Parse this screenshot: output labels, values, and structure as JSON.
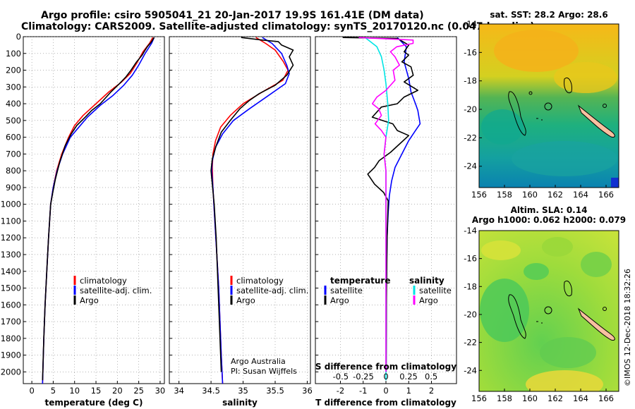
{
  "title": {
    "line1": "Argo profile: csiro 5905041_21 20-Jan-2017 19.9S 161.41E (DM data)",
    "line2": "Climatology: CARS2009. Satellite-adjusted climatology: synTS_20170120.nc (0.047d earlier)"
  },
  "colors": {
    "climatology": "#ff0000",
    "satellite": "#0000ff",
    "argo": "#000000",
    "sal_satellite": "#00e5e5",
    "sal_argo": "#ff00ff"
  },
  "depth_axis": {
    "ticks": [
      "0",
      "100",
      "200",
      "300",
      "400",
      "500",
      "600",
      "700",
      "800",
      "900",
      "1000",
      "1100",
      "1200",
      "1300",
      "1400",
      "1500",
      "1600",
      "1700",
      "1800",
      "1900",
      "2000"
    ]
  },
  "panel_temp": {
    "xlabel": "temperature (deg C)",
    "ticks": [
      "0",
      "5",
      "10",
      "15",
      "20",
      "25",
      "30"
    ],
    "legend": [
      "climatology",
      "satellite-adj. clim.",
      "Argo"
    ]
  },
  "panel_sal": {
    "xlabel": "salinity",
    "ticks": [
      "34",
      "34.5",
      "35",
      "35.5",
      "36"
    ],
    "legend": [
      "climatology",
      "satellite-adj. clim.",
      "Argo"
    ],
    "credit1": "Argo Australia",
    "credit2": "PI: Susan Wijffels"
  },
  "panel_diff": {
    "xlabel": "T difference from climatology",
    "ticks": [
      "-2",
      "-1",
      "0",
      "1",
      "2"
    ],
    "s_label": "S difference from climatology",
    "s_ticks": [
      "-0.5",
      "-0.25",
      "0",
      "0.25",
      "0.5"
    ],
    "legend_temp_head": "temperature",
    "legend_sal_head": "salinity",
    "legend_temp": [
      "satellite",
      "Argo"
    ],
    "legend_sal": [
      "satellite",
      "Argo"
    ]
  },
  "map1": {
    "title": "sat. SST: 28.2 Argo: 28.6",
    "yticks": [
      "-14",
      "-16",
      "-18",
      "-20",
      "-22",
      "-24"
    ],
    "xticks": [
      "156",
      "158",
      "160",
      "162",
      "164",
      "166"
    ]
  },
  "map2": {
    "title1": "Altim. SLA: 0.14",
    "title2": "Argo h1000: 0.062 h2000: 0.079",
    "yticks": [
      "-14",
      "-16",
      "-18",
      "-20",
      "-22",
      "-24"
    ],
    "xticks": [
      "156",
      "158",
      "160",
      "162",
      "164",
      "166"
    ]
  },
  "footer": "©IMOS 12-Dec-2018 18:32:26",
  "chart_data": [
    {
      "type": "line",
      "title": "temperature profile",
      "xlabel": "temperature (deg C)",
      "ylabel": "depth",
      "xlim": [
        -2,
        31
      ],
      "ylim": [
        2070,
        0
      ],
      "series": [
        {
          "name": "climatology",
          "points": [
            [
              28.3,
              5
            ],
            [
              27.5,
              40
            ],
            [
              26,
              90
            ],
            [
              24.5,
              160
            ],
            [
              23,
              220
            ],
            [
              21,
              270
            ],
            [
              18,
              330
            ],
            [
              15,
              400
            ],
            [
              12,
              470
            ],
            [
              10,
              530
            ],
            [
              8.6,
              600
            ],
            [
              7,
              700
            ],
            [
              5.8,
              800
            ],
            [
              5,
              900
            ],
            [
              4.4,
              1000
            ],
            [
              3.9,
              1200
            ],
            [
              3.5,
              1400
            ],
            [
              3.1,
              1600
            ],
            [
              2.8,
              1800
            ],
            [
              2.5,
              2070
            ]
          ]
        },
        {
          "name": "satellite-adj. clim.",
          "points": [
            [
              28.6,
              5
            ],
            [
              28,
              40
            ],
            [
              26.5,
              100
            ],
            [
              25,
              170
            ],
            [
              23.5,
              230
            ],
            [
              21.5,
              290
            ],
            [
              19,
              350
            ],
            [
              16,
              410
            ],
            [
              13,
              480
            ],
            [
              11,
              540
            ],
            [
              9,
              600
            ],
            [
              7.2,
              700
            ],
            [
              5.9,
              800
            ],
            [
              5,
              900
            ],
            [
              4.4,
              1000
            ],
            [
              3.9,
              1200
            ],
            [
              3.5,
              1400
            ],
            [
              3.1,
              1600
            ],
            [
              2.8,
              1800
            ],
            [
              2.5,
              2070
            ]
          ]
        },
        {
          "name": "Argo",
          "points": [
            [
              28.6,
              5
            ],
            [
              28,
              30
            ],
            [
              27,
              60
            ],
            [
              26.5,
              80
            ],
            [
              25.8,
              110
            ],
            [
              24.5,
              150
            ],
            [
              23.2,
              200
            ],
            [
              22,
              240
            ],
            [
              20.5,
              280
            ],
            [
              18.5,
              330
            ],
            [
              16,
              400
            ],
            [
              14,
              440
            ],
            [
              12.5,
              480
            ],
            [
              10.5,
              530
            ],
            [
              9.2,
              580
            ],
            [
              7.8,
              650
            ],
            [
              6.5,
              750
            ],
            [
              5.5,
              850
            ],
            [
              4.9,
              930
            ],
            [
              4.4,
              1000
            ],
            [
              3.9,
              1200
            ],
            [
              3.5,
              1400
            ],
            [
              3.1,
              1600
            ],
            [
              2.8,
              1800
            ],
            [
              2.5,
              2050
            ]
          ]
        }
      ]
    },
    {
      "type": "line",
      "title": "salinity profile",
      "xlabel": "salinity",
      "ylabel": "depth",
      "xlim": [
        33.85,
        36.05
      ],
      "ylim": [
        2070,
        0
      ],
      "series": [
        {
          "name": "climatology",
          "points": [
            [
              35.2,
              5
            ],
            [
              35.35,
              40
            ],
            [
              35.5,
              80
            ],
            [
              35.63,
              150
            ],
            [
              35.7,
              200
            ],
            [
              35.62,
              260
            ],
            [
              35.3,
              330
            ],
            [
              35,
              400
            ],
            [
              34.8,
              470
            ],
            [
              34.65,
              540
            ],
            [
              34.57,
              620
            ],
            [
              34.53,
              700
            ],
            [
              34.52,
              780
            ],
            [
              34.53,
              900
            ],
            [
              34.56,
              1100
            ],
            [
              34.59,
              1300
            ],
            [
              34.62,
              1500
            ],
            [
              34.64,
              1700
            ],
            [
              34.66,
              1900
            ],
            [
              34.68,
              2070
            ]
          ]
        },
        {
          "name": "satellite-adj. clim.",
          "points": [
            [
              35.3,
              5
            ],
            [
              35.45,
              40
            ],
            [
              35.6,
              100
            ],
            [
              35.68,
              170
            ],
            [
              35.72,
              220
            ],
            [
              35.66,
              280
            ],
            [
              35.4,
              350
            ],
            [
              35.1,
              430
            ],
            [
              34.85,
              500
            ],
            [
              34.68,
              580
            ],
            [
              34.57,
              660
            ],
            [
              34.52,
              740
            ],
            [
              34.51,
              800
            ],
            [
              34.53,
              900
            ],
            [
              34.56,
              1100
            ],
            [
              34.59,
              1300
            ],
            [
              34.62,
              1500
            ],
            [
              34.64,
              1700
            ],
            [
              34.66,
              1900
            ],
            [
              34.68,
              2070
            ]
          ]
        },
        {
          "name": "Argo",
          "points": [
            [
              34.97,
              5
            ],
            [
              35.3,
              20
            ],
            [
              35.55,
              30
            ],
            [
              35.6,
              50
            ],
            [
              35.78,
              80
            ],
            [
              35.72,
              120
            ],
            [
              35.78,
              170
            ],
            [
              35.68,
              230
            ],
            [
              35.5,
              290
            ],
            [
              35.25,
              340
            ],
            [
              35.1,
              380
            ],
            [
              34.95,
              430
            ],
            [
              34.8,
              500
            ],
            [
              34.66,
              570
            ],
            [
              34.58,
              650
            ],
            [
              34.52,
              730
            ],
            [
              34.5,
              800
            ],
            [
              34.52,
              880
            ],
            [
              34.55,
              1000
            ],
            [
              34.58,
              1200
            ],
            [
              34.6,
              1400
            ],
            [
              34.62,
              1600
            ],
            [
              34.64,
              1800
            ],
            [
              34.66,
              2000
            ]
          ]
        }
      ]
    },
    {
      "type": "line",
      "title": "difference from climatology",
      "xlabel": "T difference from climatology",
      "ylabel": "depth",
      "xlim": [
        -3.1,
        3.1
      ],
      "ylim": [
        2070,
        0
      ],
      "secondary_x": {
        "label": "S difference from climatology",
        "range": [
          -0.78,
          0.78
        ]
      },
      "series": [
        {
          "name": "temperature satellite",
          "axis": "T",
          "points": [
            [
              0.5,
              5
            ],
            [
              0.9,
              60
            ],
            [
              0.8,
              150
            ],
            [
              1,
              250
            ],
            [
              1.1,
              330
            ],
            [
              1.3,
              400
            ],
            [
              1.4,
              440
            ],
            [
              1.5,
              520
            ],
            [
              1.3,
              560
            ],
            [
              1,
              620
            ],
            [
              0.7,
              700
            ],
            [
              0.4,
              780
            ],
            [
              0.25,
              860
            ],
            [
              0.15,
              950
            ],
            [
              0.1,
              1050
            ],
            [
              0.05,
              1200
            ],
            [
              0.02,
              1500
            ],
            [
              0.01,
              2000
            ]
          ]
        },
        {
          "name": "temperature Argo",
          "axis": "T",
          "points": [
            [
              -1.9,
              5
            ],
            [
              0.5,
              10
            ],
            [
              1,
              50
            ],
            [
              0.8,
              90
            ],
            [
              1,
              110
            ],
            [
              0.7,
              150
            ],
            [
              1.1,
              180
            ],
            [
              1.2,
              230
            ],
            [
              0.8,
              270
            ],
            [
              1.4,
              320
            ],
            [
              0.8,
              360
            ],
            [
              0.5,
              400
            ],
            [
              -0.2,
              420
            ],
            [
              -0.6,
              480
            ],
            [
              0.3,
              520
            ],
            [
              0.5,
              560
            ],
            [
              1,
              590
            ],
            [
              0.6,
              640
            ],
            [
              0.2,
              690
            ],
            [
              -0.3,
              740
            ],
            [
              -0.5,
              780
            ],
            [
              -0.8,
              820
            ],
            [
              -0.5,
              880
            ],
            [
              -0.1,
              930
            ],
            [
              0.1,
              980
            ],
            [
              0.05,
              1200
            ],
            [
              0.02,
              1600
            ],
            [
              0.01,
              2000
            ]
          ]
        },
        {
          "name": "salinity satellite",
          "axis": "S",
          "points": [
            [
              -0.23,
              5
            ],
            [
              -0.1,
              60
            ],
            [
              -0.05,
              120
            ],
            [
              -0.02,
              200
            ],
            [
              0,
              280
            ],
            [
              0.02,
              400
            ],
            [
              0.03,
              500
            ],
            [
              0,
              600
            ],
            [
              -0.02,
              700
            ],
            [
              0,
              800
            ],
            [
              0,
              1000
            ],
            [
              0,
              1500
            ],
            [
              0,
              2050
            ]
          ]
        },
        {
          "name": "salinity Argo",
          "axis": "S",
          "points": [
            [
              -0.3,
              5
            ],
            [
              0.3,
              20
            ],
            [
              0.3,
              40
            ],
            [
              0.12,
              60
            ],
            [
              0.05,
              90
            ],
            [
              0.1,
              120
            ],
            [
              0.15,
              170
            ],
            [
              0.08,
              200
            ],
            [
              0.1,
              260
            ],
            [
              0,
              320
            ],
            [
              -0.1,
              360
            ],
            [
              -0.15,
              400
            ],
            [
              -0.08,
              430
            ],
            [
              -0.05,
              470
            ],
            [
              -0.12,
              520
            ],
            [
              -0.05,
              560
            ],
            [
              0,
              600
            ],
            [
              -0.02,
              700
            ],
            [
              0,
              800
            ],
            [
              0,
              1000
            ],
            [
              0,
              1500
            ],
            [
              0,
              2000
            ]
          ]
        }
      ]
    }
  ]
}
